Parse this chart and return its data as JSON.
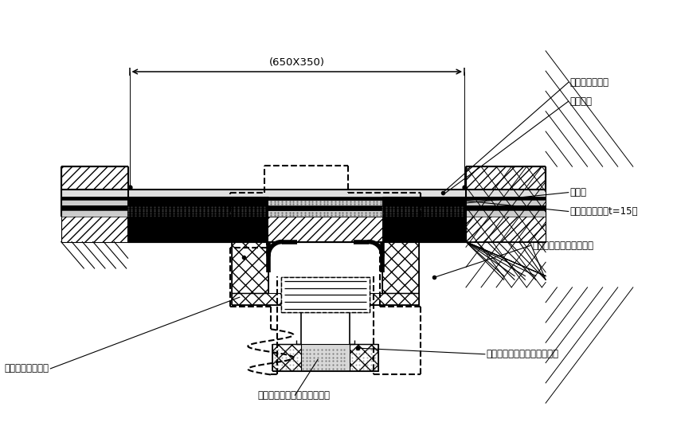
{
  "bg": "#ffffff",
  "lc": "#000000",
  "labels": {
    "dim": "(650X350)",
    "l1": "（指定仕上材）",
    "l2": "モルタル",
    "l3": "防水層",
    "l4": "（下地モルタルt=15）",
    "l5": "アンカーボルト（別途）",
    "l6": "耕火被覆（別途）",
    "l7": "ボルト又は鉄戵ビス（別途）",
    "l8": "ロックルウール充填（別途）"
  }
}
